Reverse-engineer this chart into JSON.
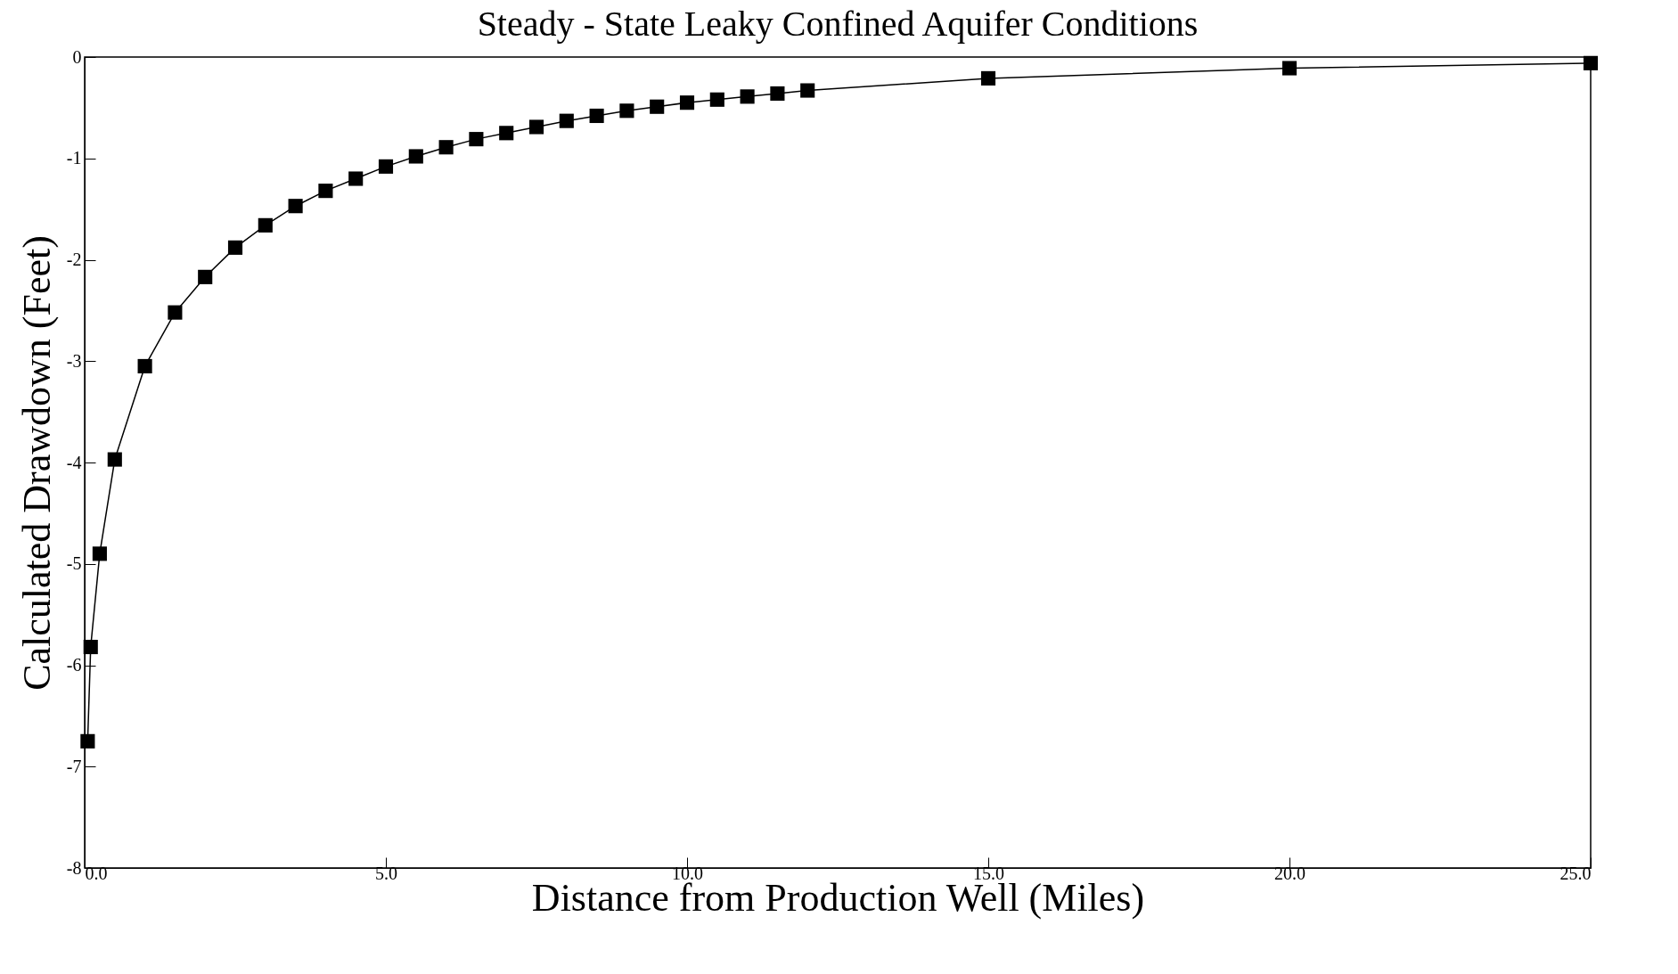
{
  "chart_data": {
    "type": "line",
    "title": "Steady - State Leaky Confined Aquifer Conditions",
    "xlabel": "Distance from Production Well (Miles)",
    "ylabel": "Calculated Drawdown (Feet)",
    "x": [
      0.05,
      0.1,
      0.25,
      0.5,
      1,
      1.5,
      2,
      2.5,
      3,
      3.5,
      4,
      4.5,
      5,
      5.5,
      6,
      6.5,
      7,
      7.5,
      8,
      8.5,
      9,
      9.5,
      10,
      10.5,
      11,
      11.5,
      12,
      15,
      20,
      25
    ],
    "series": [
      {
        "color": "#000000",
        "values": [
          -6.75,
          -5.82,
          -4.9,
          -3.97,
          -3.05,
          -2.52,
          -2.17,
          -1.88,
          -1.66,
          -1.47,
          -1.32,
          -1.2,
          -1.08,
          -0.98,
          -0.89,
          -0.81,
          -0.75,
          -0.69,
          -0.63,
          -0.58,
          -0.53,
          -0.49,
          -0.45,
          -0.42,
          -0.39,
          -0.36,
          -0.33,
          -0.21,
          -0.11,
          -0.06
        ]
      }
    ],
    "xlim": [
      0,
      25
    ],
    "xticks": [
      {
        "value": 0,
        "label": "0.0"
      },
      {
        "value": 5,
        "label": "5.0"
      },
      {
        "value": 10,
        "label": "10.0"
      },
      {
        "value": 15,
        "label": "15.0"
      },
      {
        "value": 20,
        "label": "20.0"
      },
      {
        "value": 25,
        "label": "25.0"
      }
    ],
    "ylim": [
      -8,
      0
    ],
    "yticks": [
      0,
      -1,
      -2,
      -3,
      -4,
      -5,
      -6,
      -7,
      -8
    ],
    "marker": "square",
    "line_style": "solid",
    "grid": false
  }
}
